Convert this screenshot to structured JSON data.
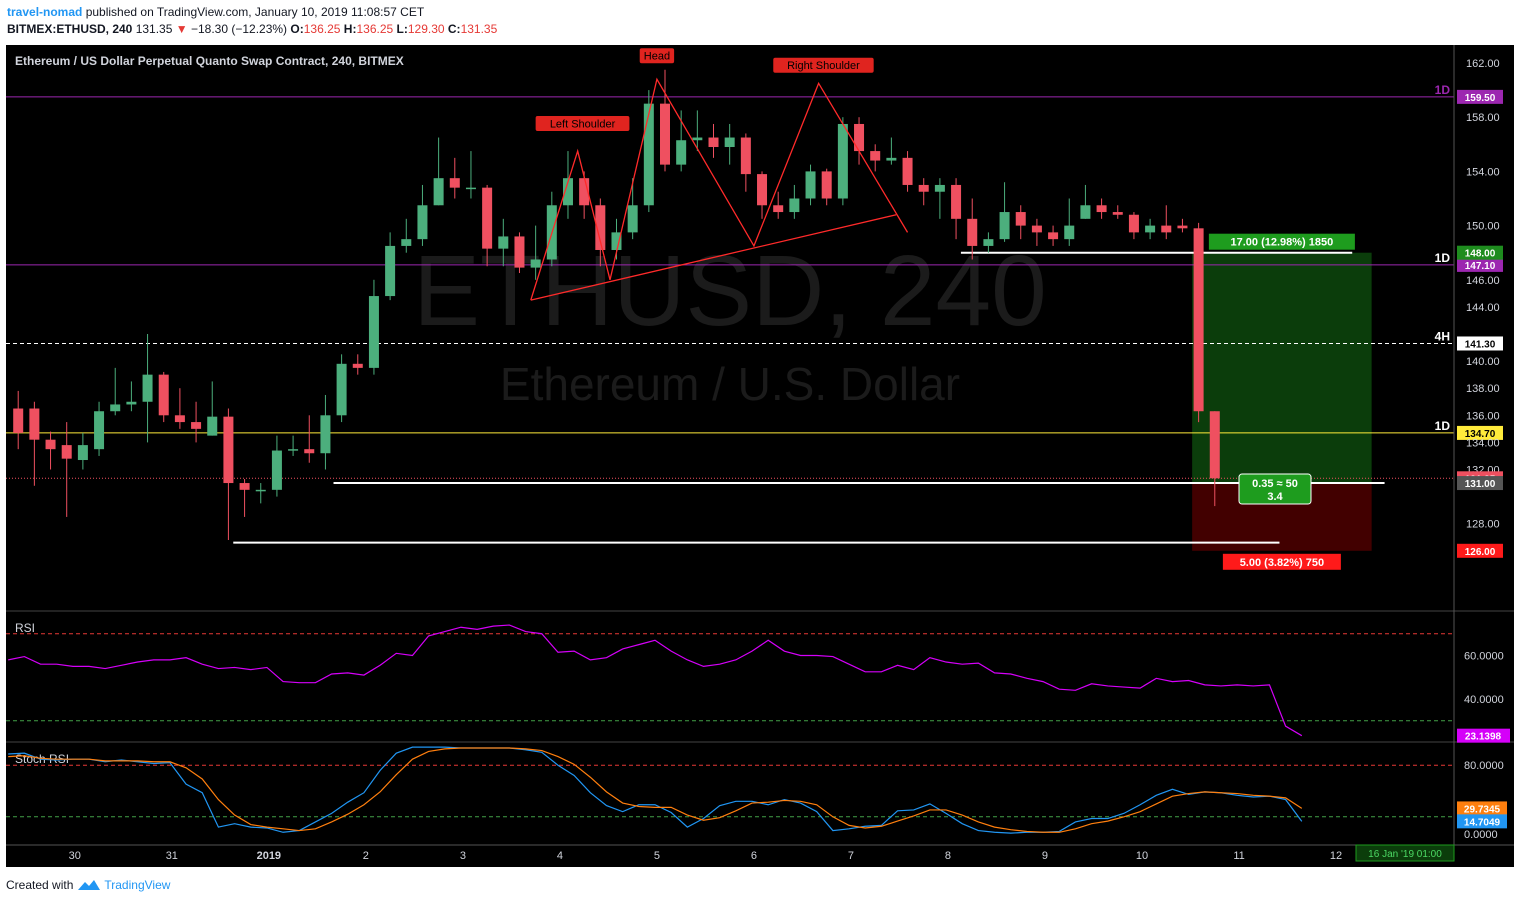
{
  "header": {
    "user": "travel-nomad",
    "published": "published on TradingView.com, January 10, 2019 11:08:57 CET",
    "symbol_line": {
      "symbol": "BITMEX:ETHUSD, 240",
      "last": "131.35",
      "arrow": "▼",
      "change": "−18.30 (−12.23%)",
      "o_label": "O:",
      "o": "136.25",
      "h_label": "H:",
      "h": "136.25",
      "l_label": "L:",
      "l": "129.30",
      "c_label": "C:",
      "c": "131.35"
    }
  },
  "legend": "Ethereum / US Dollar Perpetual Quanto Swap Contract, 240, BITMEX",
  "watermark": {
    "big": "ETHUSD, 240",
    "sub": "Ethereum / U.S. Dollar"
  },
  "footer": {
    "created": "Created with",
    "brand": "TradingView"
  },
  "colors": {
    "up": "#4caf7d",
    "down": "#ef5060",
    "pattern": "#ff2a2a",
    "purple_level": "#9c27b0",
    "yellow_level": "#ffeb3b",
    "rsi": "#d500f9",
    "stoch_k": "#2196f3",
    "stoch_d": "#ff7f0e",
    "profit_zone": "#0b3d0b",
    "loss_zone": "#420000"
  },
  "chart_data": [
    {
      "type": "candlestick",
      "title": "Ethereum / US Dollar Perpetual Quanto Swap Contract, 240, BITMEX",
      "ylim": [
        123.5,
        163
      ],
      "y_ticks": [
        "162.00",
        "158.00",
        "154.00",
        "150.00",
        "146.00",
        "144.00",
        "140.00",
        "138.00",
        "136.00",
        "134.00",
        "132.00",
        "128.00"
      ],
      "x_labels": [
        {
          "label": "30",
          "bar": 3.5
        },
        {
          "label": "31",
          "bar": 9.5
        },
        {
          "label": "2019",
          "bar": 15.5,
          "bold": true
        },
        {
          "label": "2",
          "bar": 21.5
        },
        {
          "label": "3",
          "bar": 27.5
        },
        {
          "label": "4",
          "bar": 33.5
        },
        {
          "label": "5",
          "bar": 39.5
        },
        {
          "label": "6",
          "bar": 45.5
        },
        {
          "label": "7",
          "bar": 51.5
        },
        {
          "label": "8",
          "bar": 57.5
        },
        {
          "label": "9",
          "bar": 63.5
        },
        {
          "label": "10",
          "bar": 69.5
        },
        {
          "label": "11",
          "bar": 75.5
        },
        {
          "label": "12",
          "bar": 81.5
        }
      ],
      "candles": [
        [
          136.5,
          134.7,
          137.8,
          133.5
        ],
        [
          136.5,
          134.2,
          137.0,
          130.8
        ],
        [
          134.2,
          133.5,
          134.8,
          132.0
        ],
        [
          133.8,
          132.8,
          135.5,
          128.5
        ],
        [
          132.7,
          133.8,
          134.7,
          132.0
        ],
        [
          133.5,
          136.3,
          137.0,
          133.0
        ],
        [
          136.3,
          136.8,
          139.5,
          136.0
        ],
        [
          136.8,
          137.0,
          138.5,
          136.3
        ],
        [
          137.0,
          139.0,
          142.0,
          134.0
        ],
        [
          139.0,
          136.0,
          139.2,
          135.5
        ],
        [
          136.0,
          135.5,
          138.0,
          135.0
        ],
        [
          135.5,
          135.0,
          137.0,
          134.0
        ],
        [
          134.5,
          135.9,
          138.5,
          134.5
        ],
        [
          135.9,
          131.0,
          136.5,
          126.8
        ],
        [
          131.0,
          130.5,
          131.3,
          128.5
        ],
        [
          130.5,
          130.5,
          131.0,
          129.5
        ],
        [
          130.5,
          133.4,
          134.5,
          130.0
        ],
        [
          133.4,
          133.5,
          134.5,
          133.0
        ],
        [
          133.5,
          133.2,
          136.0,
          132.5
        ],
        [
          133.2,
          136.0,
          137.5,
          132.0
        ],
        [
          136.0,
          139.8,
          140.5,
          135.5
        ],
        [
          139.8,
          139.5,
          140.5,
          139.0
        ],
        [
          139.5,
          144.8,
          146.0,
          139.0
        ],
        [
          144.8,
          148.5,
          149.5,
          144.5
        ],
        [
          148.5,
          149.0,
          150.5,
          148.0
        ],
        [
          149.0,
          151.5,
          153.0,
          148.5
        ],
        [
          151.5,
          153.5,
          156.5,
          151.5
        ],
        [
          153.5,
          152.8,
          155.0,
          152.0
        ],
        [
          152.8,
          152.8,
          155.5,
          152.0
        ],
        [
          152.8,
          148.3,
          153.0,
          147.0
        ],
        [
          148.3,
          149.2,
          150.5,
          147.0
        ],
        [
          149.2,
          146.9,
          149.5,
          146.5
        ],
        [
          146.9,
          147.5,
          150.0,
          146.0
        ],
        [
          147.5,
          151.5,
          152.5,
          147.0
        ],
        [
          151.5,
          153.5,
          155.5,
          150.5
        ],
        [
          153.5,
          151.5,
          154.0,
          150.5
        ],
        [
          151.5,
          148.2,
          152.0,
          147.0
        ],
        [
          148.2,
          149.5,
          150.5,
          147.5
        ],
        [
          149.5,
          151.5,
          153.5,
          149.0
        ],
        [
          151.5,
          159.0,
          160.0,
          151.0
        ],
        [
          159.0,
          154.5,
          161.5,
          154.0
        ],
        [
          154.5,
          156.3,
          158.5,
          154.0
        ],
        [
          156.3,
          156.5,
          158.5,
          155.5
        ],
        [
          156.5,
          155.8,
          157.5,
          155.0
        ],
        [
          155.8,
          156.5,
          157.5,
          154.5
        ],
        [
          156.5,
          153.8,
          156.8,
          152.5
        ],
        [
          153.8,
          151.5,
          154.0,
          150.5
        ],
        [
          151.5,
          151.0,
          152.5,
          150.5
        ],
        [
          151.0,
          152.0,
          153.0,
          150.5
        ],
        [
          152.0,
          154.0,
          154.5,
          151.5
        ],
        [
          154.0,
          152.0,
          154.2,
          151.5
        ],
        [
          152.0,
          157.5,
          158.0,
          151.5
        ],
        [
          157.5,
          155.5,
          158.0,
          154.5
        ],
        [
          155.5,
          154.8,
          156.0,
          154.0
        ],
        [
          154.8,
          155.0,
          156.5,
          154.5
        ],
        [
          155.0,
          153.0,
          155.5,
          152.5
        ],
        [
          153.0,
          152.5,
          153.5,
          151.5
        ],
        [
          152.5,
          153.0,
          153.5,
          150.5
        ],
        [
          153.0,
          150.5,
          153.5,
          149.0
        ],
        [
          150.5,
          148.5,
          152.0,
          147.5
        ],
        [
          148.5,
          149.0,
          149.5,
          148.0
        ],
        [
          149.0,
          151.0,
          153.2,
          148.8
        ],
        [
          151.0,
          150.0,
          151.5,
          149.0
        ],
        [
          150.0,
          149.5,
          150.5,
          148.5
        ],
        [
          149.5,
          149.0,
          150.0,
          148.5
        ],
        [
          149.0,
          150.0,
          152.0,
          148.5
        ],
        [
          150.5,
          151.5,
          153.0,
          150.5
        ],
        [
          151.5,
          151.0,
          152.0,
          150.5
        ],
        [
          151.0,
          150.8,
          151.5,
          150.5
        ],
        [
          150.8,
          149.5,
          151.0,
          149.0
        ],
        [
          149.5,
          150.0,
          150.5,
          149.0
        ],
        [
          150.0,
          149.5,
          151.5,
          149.0
        ],
        [
          150.0,
          149.8,
          150.5,
          149.5
        ],
        [
          149.8,
          136.3,
          150.2,
          135.5
        ],
        [
          136.3,
          131.35,
          136.3,
          129.3
        ]
      ],
      "horizontal_levels": [
        {
          "value": 159.5,
          "style": "purple",
          "tag": "1D",
          "label": "159.50"
        },
        {
          "value": 147.1,
          "style": "purple",
          "tag": "1D",
          "label": "147.10"
        },
        {
          "value": 141.3,
          "style": "white-dashed",
          "tag": "4H",
          "label": "141.30"
        },
        {
          "value": 134.7,
          "style": "yellow",
          "tag": "1D",
          "label": "134.70"
        }
      ],
      "price_tags": [
        {
          "value": 148.0,
          "label": "148.00",
          "bg": "#1e8c1e",
          "fg": "#ffffff"
        },
        {
          "value": 131.35,
          "label": "131.35",
          "bg": "#ef5060",
          "fg": "#ffffff"
        },
        {
          "value": 131.0,
          "label": "131.00",
          "bg": "#555555",
          "fg": "#ffffff"
        },
        {
          "value": 126.0,
          "label": "126.00",
          "bg": "#ff1a1a",
          "fg": "#ffffff"
        }
      ],
      "support_lines": [
        {
          "value": 148.0,
          "from_bar": 58.3,
          "to_bar": 82.5
        },
        {
          "value": 131.0,
          "from_bar": 19.5,
          "to_bar": 84.5
        },
        {
          "value": 126.6,
          "from_bar": 13.3,
          "to_bar": 78.0
        }
      ],
      "pattern_points": [
        [
          31.7,
          144.5
        ],
        [
          34.6,
          155.5
        ],
        [
          36.6,
          146.0
        ],
        [
          39.5,
          160.8
        ],
        [
          45.5,
          148.5
        ],
        [
          49.5,
          160.5
        ],
        [
          55.0,
          149.5
        ]
      ],
      "neckline": [
        [
          31.7,
          144.5
        ],
        [
          54.3,
          150.8
        ]
      ],
      "pattern_labels": [
        {
          "text": "Left Shoulder",
          "bar": 34.9,
          "value": 157.5
        },
        {
          "text": "Head",
          "bar": 39.5,
          "value": 162.5
        },
        {
          "text": "Right Shoulder",
          "bar": 49.8,
          "value": 161.8
        }
      ],
      "position": {
        "from_bar": 72.6,
        "to_bar": 83.7,
        "entry": 131.0,
        "target": 148.0,
        "stop": 126.0,
        "target_label": "17.00 (12.98%) 1850",
        "stop_label": "5.00 (3.82%) 750",
        "ratio_line1": "0.35 ≈ 50",
        "ratio_line2": "3.4"
      }
    },
    {
      "type": "line",
      "title": "RSI",
      "ylim": [
        23.1398,
        78
      ],
      "y_ticks": [
        "60.0000",
        "40.0000"
      ],
      "bands": [
        70,
        30
      ],
      "last_label": "23.1398",
      "values": [
        58,
        59.5,
        56,
        56,
        55,
        55,
        54,
        55.5,
        57,
        58,
        58,
        59,
        56,
        54,
        54.5,
        53.5,
        54.5,
        48,
        47.5,
        47.5,
        51.5,
        52,
        51,
        55.5,
        61,
        60,
        69,
        71,
        73,
        72,
        73.5,
        74,
        71,
        70,
        61.5,
        62,
        58,
        59,
        63,
        65,
        67,
        62,
        58,
        55,
        56,
        58,
        62,
        67,
        62,
        60,
        60,
        59.5,
        56,
        52.5,
        52.5,
        55.5,
        53.5,
        59,
        57,
        56,
        56.5,
        52,
        51.5,
        49.5,
        48,
        44.5,
        44,
        47,
        46,
        45.5,
        45,
        49.5,
        48,
        48.5,
        46.5,
        46,
        46.5,
        46,
        46.5,
        27.5,
        23.1398
      ]
    },
    {
      "type": "line",
      "title": "Stoch RSI",
      "ylim": [
        -3,
        115
      ],
      "y_ticks": [
        "80.0000",
        "0.0000"
      ],
      "bands": [
        80,
        20
      ],
      "last_labels": [
        "29.7345",
        "14.7049"
      ],
      "k_values": [
        93,
        94,
        87,
        86,
        87,
        87,
        84,
        86,
        84,
        82,
        83,
        58,
        48,
        8,
        12,
        8,
        7,
        2,
        4,
        14,
        24,
        37,
        48,
        74,
        94,
        101,
        101,
        101,
        100,
        100,
        100,
        100,
        98,
        95,
        80,
        68,
        48,
        33,
        26,
        34,
        34,
        25,
        8,
        18,
        33,
        38,
        38,
        34,
        40,
        36,
        26,
        4,
        6,
        9,
        10,
        27,
        28,
        35,
        24,
        12,
        4,
        2,
        1,
        2,
        2,
        3,
        14,
        18,
        18,
        24,
        34,
        45,
        52,
        46,
        49,
        48,
        45,
        43,
        44,
        40,
        14.7049
      ],
      "d_values": [
        90,
        91,
        88,
        87,
        87,
        87,
        85,
        85,
        85,
        84,
        84,
        77,
        64,
        40,
        22,
        11,
        8,
        6,
        4,
        6,
        14,
        23,
        34,
        49,
        69,
        87,
        96,
        99,
        100,
        100,
        100,
        100,
        99,
        97,
        90,
        81,
        66,
        49,
        36,
        32,
        31,
        31,
        22,
        16,
        19,
        27,
        36,
        37,
        39,
        38,
        34,
        20,
        10,
        7,
        9,
        15,
        21,
        28,
        28,
        22,
        14,
        8,
        5,
        3,
        2,
        2,
        6,
        12,
        15,
        20,
        26,
        35,
        44,
        47,
        49,
        48,
        47,
        45,
        44,
        42,
        29.7345
      ]
    }
  ],
  "date_range_badge": "16 Jan '19   01:00"
}
